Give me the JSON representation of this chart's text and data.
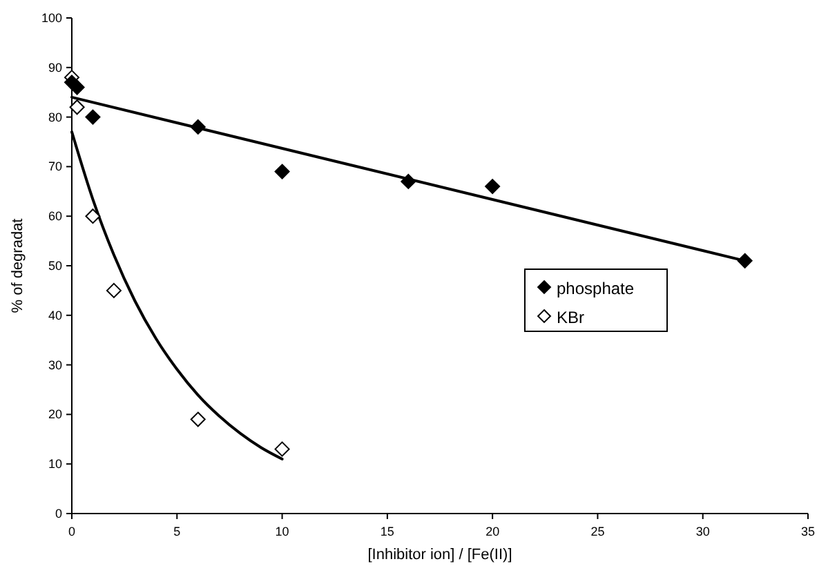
{
  "chart_data": {
    "type": "scatter",
    "xlabel": "[Inhibitor ion] / [Fe(II)]",
    "ylabel": "% of degradat",
    "xlim": [
      0,
      35
    ],
    "xticks": [
      0,
      5,
      10,
      15,
      20,
      25,
      30,
      35
    ],
    "ylim": [
      0,
      100
    ],
    "yticks": [
      0,
      10,
      20,
      30,
      40,
      50,
      60,
      70,
      80,
      90,
      100
    ],
    "grid": false,
    "legend": "right",
    "marker": "diamond",
    "series": [
      {
        "name": "phosphate",
        "color": "#000000",
        "x": [
          0,
          0.25,
          1,
          6,
          10,
          16,
          20,
          32
        ],
        "values": [
          87,
          86,
          80,
          78,
          69,
          67,
          66,
          51
        ]
      },
      {
        "name": "KBr",
        "color": "#ffffff",
        "x": [
          0,
          0.25,
          1,
          2,
          6,
          10
        ],
        "values": [
          88,
          82,
          60,
          45,
          19,
          13
        ]
      },
      {
        "type": "line",
        "color": "#000000",
        "marker": "none",
        "x": [
          0,
          32
        ],
        "values": [
          84,
          51
        ]
      },
      {
        "type": "line",
        "color": "#000000",
        "marker": "none",
        "x": [
          0,
          1,
          2,
          3,
          4,
          5,
          6,
          7,
          8,
          9,
          10
        ],
        "values": [
          77,
          63.4,
          52.2,
          42.9,
          35.3,
          29.1,
          23.9,
          19.7,
          16.2,
          13.3,
          11
        ]
      }
    ]
  }
}
